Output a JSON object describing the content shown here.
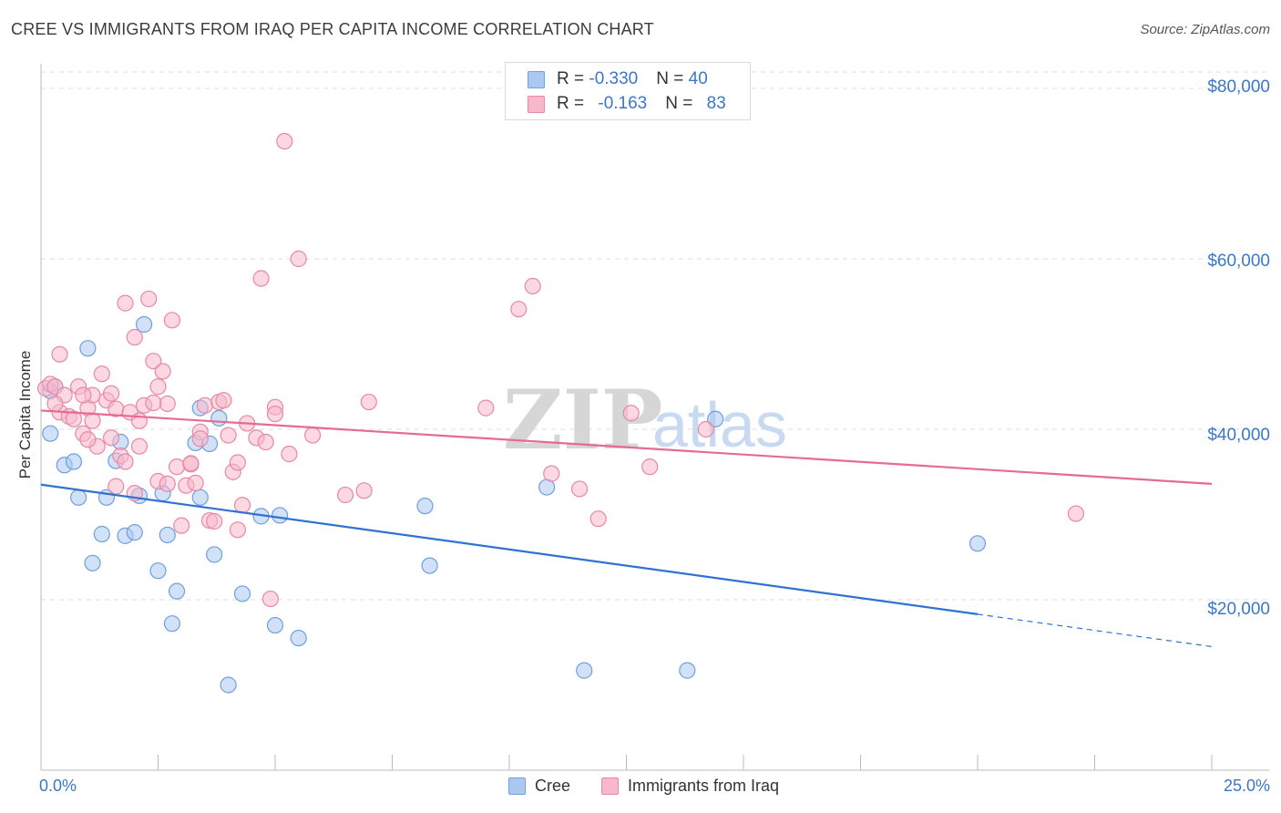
{
  "title": "CREE VS IMMIGRANTS FROM IRAQ PER CAPITA INCOME CORRELATION CHART",
  "source": "Source: ZipAtlas.com",
  "watermark": {
    "zip": "ZIP",
    "atlas": "atlas"
  },
  "legend": {
    "series": [
      {
        "name": "Cree",
        "r_label": "R = ",
        "r_value": "-0.330",
        "n_label": "N = ",
        "n_value": "40",
        "color": "#a9c8f2",
        "stroke": "#6f9fde"
      },
      {
        "name": "Immigrants from Iraq",
        "r_label": "R = ",
        "r_value": "-0.163",
        "n_label": "N = ",
        "n_value": "83",
        "color": "#f7b8cb",
        "stroke": "#e888a6"
      }
    ]
  },
  "axis": {
    "x_min_label": "0.0%",
    "x_max_label": "25.0%",
    "y_label": "Per Capita Income",
    "y_ticks": [
      "$80,000",
      "$60,000",
      "$40,000",
      "$20,000"
    ]
  },
  "chart_data": {
    "type": "scatter",
    "xlabel": "",
    "ylabel": "Per Capita Income",
    "xlim": [
      0,
      25
    ],
    "ylim": [
      0,
      82000
    ],
    "y_ticks": [
      20000,
      40000,
      60000,
      80000
    ],
    "grid": "horizontal dashed",
    "series": [
      {
        "name": "Cree",
        "color": "#a9c8f2",
        "trend": {
          "x": [
            0,
            20,
            25
          ],
          "y": [
            33500,
            18300,
            14500
          ],
          "dashed_after": 20
        },
        "points": [
          [
            0.2,
            44500
          ],
          [
            0.2,
            39500
          ],
          [
            0.5,
            35800
          ],
          [
            0.7,
            36200
          ],
          [
            0.8,
            32000
          ],
          [
            1.0,
            49500
          ],
          [
            1.1,
            24300
          ],
          [
            1.3,
            27700
          ],
          [
            1.4,
            32000
          ],
          [
            1.6,
            36300
          ],
          [
            1.7,
            38500
          ],
          [
            1.8,
            27500
          ],
          [
            2.0,
            27900
          ],
          [
            2.1,
            32200
          ],
          [
            2.2,
            52300
          ],
          [
            2.5,
            23400
          ],
          [
            2.6,
            32500
          ],
          [
            2.7,
            27600
          ],
          [
            2.8,
            17200
          ],
          [
            2.9,
            21000
          ],
          [
            3.3,
            38400
          ],
          [
            3.4,
            42500
          ],
          [
            3.4,
            32000
          ],
          [
            3.6,
            38300
          ],
          [
            3.7,
            25300
          ],
          [
            3.8,
            41300
          ],
          [
            4.0,
            10000
          ],
          [
            4.3,
            20700
          ],
          [
            4.7,
            29800
          ],
          [
            5.0,
            17000
          ],
          [
            5.1,
            29900
          ],
          [
            5.5,
            15500
          ],
          [
            8.2,
            31000
          ],
          [
            8.3,
            24000
          ],
          [
            10.8,
            33200
          ],
          [
            11.6,
            11700
          ],
          [
            13.8,
            11700
          ],
          [
            14.4,
            41200
          ],
          [
            20.0,
            26600
          ],
          [
            0.3,
            45000
          ]
        ]
      },
      {
        "name": "Immigrants from Iraq",
        "color": "#f7b8cb",
        "trend": {
          "x": [
            0,
            25
          ],
          "y": [
            42200,
            33600
          ]
        },
        "points": [
          [
            0.1,
            44800
          ],
          [
            0.2,
            45300
          ],
          [
            0.3,
            45000
          ],
          [
            0.4,
            42000
          ],
          [
            0.4,
            48800
          ],
          [
            0.5,
            44000
          ],
          [
            0.6,
            41500
          ],
          [
            0.7,
            41200
          ],
          [
            0.8,
            45000
          ],
          [
            0.9,
            39500
          ],
          [
            1.0,
            42500
          ],
          [
            1.1,
            41000
          ],
          [
            1.1,
            44000
          ],
          [
            1.2,
            38000
          ],
          [
            1.3,
            46500
          ],
          [
            1.4,
            43400
          ],
          [
            1.5,
            44200
          ],
          [
            1.5,
            39000
          ],
          [
            1.6,
            42400
          ],
          [
            1.6,
            33300
          ],
          [
            1.7,
            36900
          ],
          [
            1.8,
            36200
          ],
          [
            1.8,
            54800
          ],
          [
            1.9,
            42000
          ],
          [
            2.0,
            50800
          ],
          [
            2.0,
            32500
          ],
          [
            2.1,
            41000
          ],
          [
            2.1,
            38000
          ],
          [
            2.2,
            42800
          ],
          [
            2.3,
            55300
          ],
          [
            2.4,
            48000
          ],
          [
            2.5,
            33900
          ],
          [
            2.5,
            45000
          ],
          [
            2.6,
            46800
          ],
          [
            2.7,
            43000
          ],
          [
            2.7,
            33600
          ],
          [
            2.8,
            52800
          ],
          [
            2.9,
            35600
          ],
          [
            3.0,
            28700
          ],
          [
            3.1,
            33400
          ],
          [
            3.2,
            35900
          ],
          [
            3.3,
            33700
          ],
          [
            3.4,
            39700
          ],
          [
            3.4,
            38900
          ],
          [
            3.5,
            42800
          ],
          [
            3.6,
            29300
          ],
          [
            3.7,
            29200
          ],
          [
            3.8,
            43200
          ],
          [
            3.9,
            43400
          ],
          [
            4.0,
            39300
          ],
          [
            4.1,
            35000
          ],
          [
            4.2,
            36100
          ],
          [
            4.2,
            28200
          ],
          [
            4.3,
            31100
          ],
          [
            4.4,
            40700
          ],
          [
            4.6,
            39000
          ],
          [
            4.7,
            57700
          ],
          [
            4.8,
            38500
          ],
          [
            4.9,
            20100
          ],
          [
            5.0,
            42600
          ],
          [
            5.2,
            73800
          ],
          [
            5.3,
            37100
          ],
          [
            5.5,
            60000
          ],
          [
            5.8,
            39300
          ],
          [
            6.5,
            32300
          ],
          [
            6.9,
            32800
          ],
          [
            7.0,
            43200
          ],
          [
            9.5,
            42500
          ],
          [
            10.2,
            54100
          ],
          [
            10.5,
            56800
          ],
          [
            10.9,
            34800
          ],
          [
            11.5,
            33000
          ],
          [
            11.9,
            29500
          ],
          [
            13.0,
            35600
          ],
          [
            14.2,
            40000
          ],
          [
            22.1,
            30100
          ],
          [
            0.9,
            44000
          ],
          [
            2.4,
            43100
          ],
          [
            3.2,
            36000
          ],
          [
            5.0,
            41800
          ],
          [
            0.3,
            43000
          ],
          [
            1.0,
            38800
          ],
          [
            12.6,
            41900
          ]
        ]
      }
    ]
  }
}
